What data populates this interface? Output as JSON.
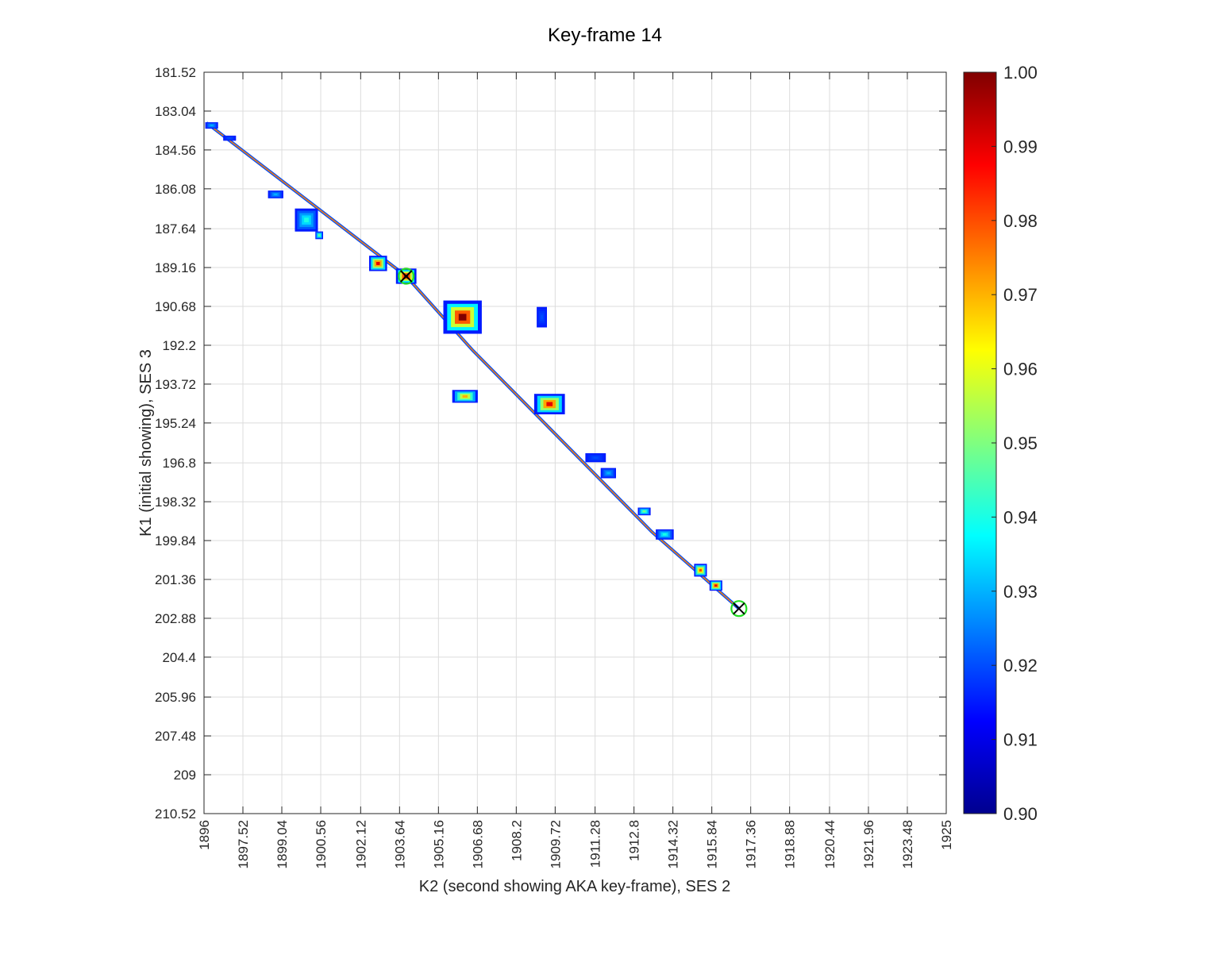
{
  "chart_data": {
    "type": "heatmap",
    "title": "Key-frame 14",
    "xlabel": "K2 (second showing AKA key-frame), SES 2",
    "ylabel": "K1 (initial showing), SES 3",
    "xlim": [
      1896,
      1925
    ],
    "ylim": [
      181.52,
      210.52
    ],
    "y_reversed": true,
    "grid": true,
    "x_ticks": [
      "1896",
      "1897.52",
      "1899.04",
      "1900.56",
      "1902.12",
      "1903.64",
      "1905.16",
      "1906.68",
      "1908.2",
      "1909.72",
      "1911.28",
      "1912.8",
      "1914.32",
      "1915.84",
      "1917.36",
      "1918.88",
      "1920.44",
      "1921.96",
      "1923.48",
      "1925"
    ],
    "x_tick_values": [
      1896,
      1897.52,
      1899.04,
      1900.56,
      1902.12,
      1903.64,
      1905.16,
      1906.68,
      1908.2,
      1909.72,
      1911.28,
      1912.8,
      1914.32,
      1915.84,
      1917.36,
      1918.88,
      1920.44,
      1921.96,
      1923.48,
      1925
    ],
    "y_ticks": [
      "181.52",
      "183.04",
      "184.56",
      "186.08",
      "187.64",
      "189.16",
      "190.68",
      "192.2",
      "193.72",
      "195.24",
      "196.8",
      "198.32",
      "199.84",
      "201.36",
      "202.88",
      "204.4",
      "205.96",
      "207.48",
      "209",
      "210.52"
    ],
    "y_tick_values": [
      181.52,
      183.04,
      184.56,
      186.08,
      187.64,
      189.16,
      190.68,
      192.2,
      193.72,
      195.24,
      196.8,
      198.32,
      199.84,
      201.36,
      202.88,
      204.4,
      205.96,
      207.48,
      209,
      210.52
    ],
    "colorbar": {
      "colormap": "jet",
      "range": [
        0.9,
        1.0
      ],
      "ticks": [
        "1.00",
        "0.99",
        "0.98",
        "0.97",
        "0.96",
        "0.95",
        "0.94",
        "0.93",
        "0.92",
        "0.91",
        "0.90"
      ],
      "tick_values": [
        1.0,
        0.99,
        0.98,
        0.97,
        0.96,
        0.95,
        0.94,
        0.93,
        0.92,
        0.91,
        0.9
      ]
    },
    "diagonal_path": [
      [
        1896.1,
        183.5
      ],
      [
        1903.9,
        189.5
      ],
      [
        1906.5,
        192.4
      ],
      [
        1913.5,
        199.5
      ],
      [
        1916.9,
        202.5
      ]
    ],
    "blobs": [
      {
        "x": 1896.3,
        "y": 183.6,
        "w": 0.5,
        "h": 0.25,
        "peak": 0.93
      },
      {
        "x": 1897.0,
        "y": 184.1,
        "w": 0.5,
        "h": 0.2,
        "peak": 0.92
      },
      {
        "x": 1898.8,
        "y": 186.3,
        "w": 0.6,
        "h": 0.3,
        "peak": 0.93
      },
      {
        "x": 1900.0,
        "y": 187.3,
        "w": 0.9,
        "h": 0.9,
        "peak": 0.94
      },
      {
        "x": 1900.5,
        "y": 187.9,
        "w": 0.3,
        "h": 0.3,
        "peak": 0.95
      },
      {
        "x": 1902.8,
        "y": 189.0,
        "w": 0.7,
        "h": 0.6,
        "peak": 0.99
      },
      {
        "x": 1903.9,
        "y": 189.5,
        "w": 0.8,
        "h": 0.6,
        "peak": 1.0
      },
      {
        "x": 1906.1,
        "y": 191.1,
        "w": 1.5,
        "h": 1.3,
        "peak": 1.0
      },
      {
        "x": 1909.2,
        "y": 191.1,
        "w": 0.4,
        "h": 0.8,
        "peak": 0.92
      },
      {
        "x": 1906.2,
        "y": 194.2,
        "w": 1.0,
        "h": 0.5,
        "peak": 0.97
      },
      {
        "x": 1909.5,
        "y": 194.5,
        "w": 1.2,
        "h": 0.8,
        "peak": 0.99
      },
      {
        "x": 1911.3,
        "y": 196.6,
        "w": 0.8,
        "h": 0.35,
        "peak": 0.92
      },
      {
        "x": 1911.8,
        "y": 197.2,
        "w": 0.6,
        "h": 0.4,
        "peak": 0.93
      },
      {
        "x": 1913.2,
        "y": 198.7,
        "w": 0.5,
        "h": 0.3,
        "peak": 0.95
      },
      {
        "x": 1914.0,
        "y": 199.6,
        "w": 0.7,
        "h": 0.4,
        "peak": 0.94
      },
      {
        "x": 1915.4,
        "y": 201.0,
        "w": 0.5,
        "h": 0.5,
        "peak": 0.98
      },
      {
        "x": 1916.0,
        "y": 201.6,
        "w": 0.5,
        "h": 0.4,
        "peak": 0.99
      }
    ],
    "markers": [
      {
        "x": 1903.9,
        "y": 189.5,
        "type": "circle-x"
      },
      {
        "x": 1916.9,
        "y": 202.5,
        "type": "circle-x"
      }
    ]
  }
}
